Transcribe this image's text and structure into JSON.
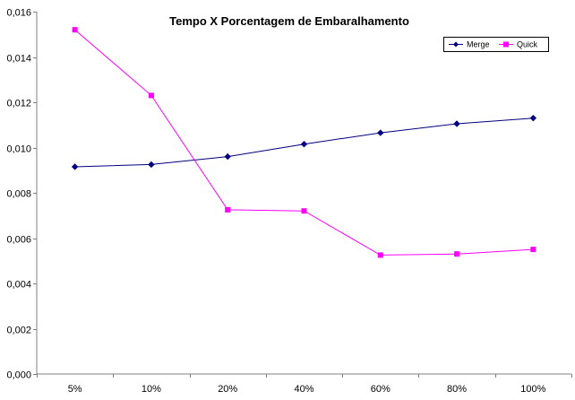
{
  "chart_data": {
    "type": "line",
    "title": "Tempo X Porcentagem de Embaralhamento",
    "xlabel": "",
    "ylabel": "",
    "categories": [
      "5%",
      "10%",
      "20%",
      "40%",
      "60%",
      "80%",
      "100%"
    ],
    "ylim": [
      0,
      0.016
    ],
    "yticks": [
      0,
      0.002,
      0.004,
      0.006,
      0.008,
      0.01,
      0.012,
      0.014,
      0.016
    ],
    "ytick_labels": [
      "0,000",
      "0,002",
      "0,004",
      "0,006",
      "0,008",
      "0,010",
      "0,012",
      "0,014",
      "0,016"
    ],
    "grid": false,
    "legend_position": "top-right",
    "series": [
      {
        "name": "Merge",
        "color": "#000080",
        "marker": "diamond",
        "values": [
          0.00915,
          0.00925,
          0.0096,
          0.01015,
          0.01065,
          0.01105,
          0.0113
        ]
      },
      {
        "name": "Quick",
        "color": "#ff00ff",
        "marker": "square",
        "values": [
          0.0152,
          0.0123,
          0.00725,
          0.0072,
          0.00525,
          0.0053,
          0.0055
        ]
      }
    ]
  }
}
